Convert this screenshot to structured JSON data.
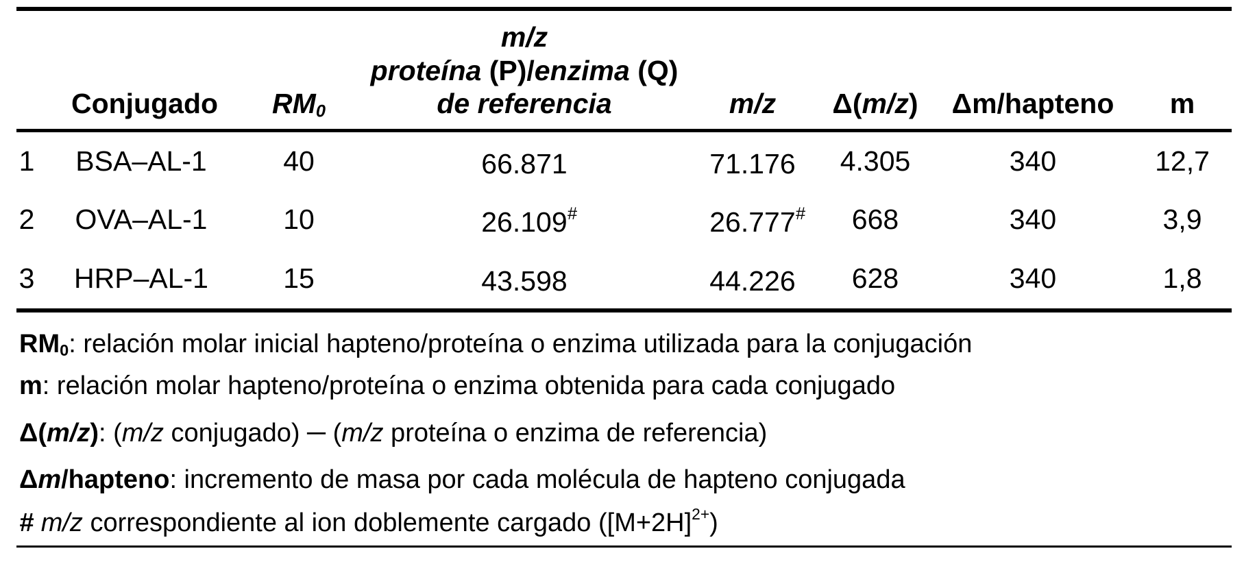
{
  "header": {
    "conjugado": "Conjugado",
    "rm_main": "RM",
    "rm_sub": "0",
    "ref_line1": "m/z",
    "ref_line2_a": "proteína",
    "ref_line2_b": "(",
    "ref_line2_c": "P",
    "ref_line2_d": ")/",
    "ref_line2_e": "enzima",
    "ref_line2_f": "(",
    "ref_line2_g": "Q",
    "ref_line2_h": ")",
    "ref_line3": "de referencia",
    "mz": "m/z",
    "delta_a": "Δ(",
    "delta_b": "m/z",
    "delta_c": ")",
    "dm_hapteno": "Δm/hapteno",
    "m": "m"
  },
  "rows": [
    {
      "n": "1",
      "conjugado": "BSA–AL-1",
      "rm0": "40",
      "ref": "66.871",
      "ref_mark": "",
      "mz": "71.176",
      "mz_mark": "",
      "delta": "4.305",
      "dm": "340",
      "m": "12,7"
    },
    {
      "n": "2",
      "conjugado": "OVA–AL-1",
      "rm0": "10",
      "ref": "26.109",
      "ref_mark": "#",
      "mz": "26.777",
      "mz_mark": "#",
      "delta": "668",
      "dm": "340",
      "m": "3,9"
    },
    {
      "n": "3",
      "conjugado": "HRP–AL-1",
      "rm0": "15",
      "ref": "43.598",
      "ref_mark": "",
      "mz": "44.226",
      "mz_mark": "",
      "delta": "628",
      "dm": "340",
      "m": "1,8"
    }
  ],
  "notes": {
    "rm0_term": "RM",
    "rm0_sub": "0",
    "rm0_text": ": relación molar inicial hapteno/proteína o enzima utilizada para la conjugación",
    "m_term": "m",
    "m_text": ": relación molar hapteno/proteína o enzima obtenida para cada conjugado",
    "delta_term_a": "Δ(",
    "delta_term_b": "m/z",
    "delta_term_c": ")",
    "delta_text_1": ": (",
    "delta_text_2": "m/z",
    "delta_text_3": " conjugado) ─ (",
    "delta_text_4": "m/z",
    "delta_text_5": " proteína o enzima de referencia)",
    "dm_term_a": "Δ",
    "dm_term_b": "m",
    "dm_term_c": "/hapteno",
    "dm_text": ": incremento de masa por cada molécula de hapteno conjugada",
    "hash_term": "#",
    "hash_mz": "m/z",
    "hash_text": " correspondiente al ion doblemente cargado ([M+2H]",
    "hash_sup": "2+",
    "hash_close": ")"
  }
}
